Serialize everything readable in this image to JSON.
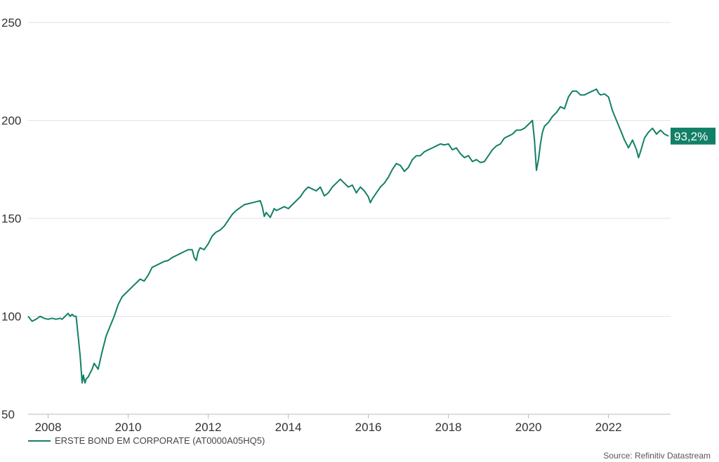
{
  "colors": {
    "series": "#128066",
    "grid": "#e2e2e2",
    "text": "#333333"
  },
  "chart_data": {
    "type": "line",
    "title": "",
    "xlabel": "",
    "ylabel": "",
    "xlim": [
      2007.5,
      2023.55
    ],
    "ylim": [
      50,
      250
    ],
    "y_ticks": [
      "50",
      "100",
      "150",
      "200",
      "250"
    ],
    "x_ticks": [
      "2008",
      "2010",
      "2012",
      "2014",
      "2016",
      "2018",
      "2020",
      "2022"
    ],
    "grid": "horizontal",
    "legend_position": "bottom-left",
    "end_label": "93,2%",
    "series": [
      {
        "name": "ERSTE BOND EM CORPORATE (AT0000A05HQ5)",
        "points": [
          [
            2007.5,
            100
          ],
          [
            2007.6,
            97.5
          ],
          [
            2007.7,
            98.5
          ],
          [
            2007.8,
            100
          ],
          [
            2007.9,
            99
          ],
          [
            2008.0,
            98.5
          ],
          [
            2008.1,
            99
          ],
          [
            2008.2,
            98.5
          ],
          [
            2008.3,
            99
          ],
          [
            2008.35,
            98.5
          ],
          [
            2008.45,
            100.5
          ],
          [
            2008.5,
            101.5
          ],
          [
            2008.55,
            100
          ],
          [
            2008.6,
            101
          ],
          [
            2008.65,
            100
          ],
          [
            2008.7,
            100
          ],
          [
            2008.75,
            90
          ],
          [
            2008.8,
            80
          ],
          [
            2008.85,
            66
          ],
          [
            2008.88,
            70
          ],
          [
            2008.92,
            66
          ],
          [
            2008.95,
            68
          ],
          [
            2009.0,
            69
          ],
          [
            2009.1,
            73
          ],
          [
            2009.15,
            76
          ],
          [
            2009.25,
            73
          ],
          [
            2009.35,
            82
          ],
          [
            2009.45,
            90
          ],
          [
            2009.55,
            95
          ],
          [
            2009.65,
            100
          ],
          [
            2009.75,
            106
          ],
          [
            2009.85,
            110
          ],
          [
            2009.95,
            112
          ],
          [
            2010.1,
            115
          ],
          [
            2010.2,
            117
          ],
          [
            2010.3,
            119
          ],
          [
            2010.4,
            118
          ],
          [
            2010.5,
            121
          ],
          [
            2010.6,
            125
          ],
          [
            2010.7,
            126
          ],
          [
            2010.8,
            127
          ],
          [
            2010.9,
            128
          ],
          [
            2011.0,
            128.5
          ],
          [
            2011.1,
            130
          ],
          [
            2011.2,
            131
          ],
          [
            2011.3,
            132
          ],
          [
            2011.4,
            133
          ],
          [
            2011.5,
            134
          ],
          [
            2011.6,
            134
          ],
          [
            2011.65,
            130
          ],
          [
            2011.7,
            128.5
          ],
          [
            2011.75,
            133
          ],
          [
            2011.8,
            135
          ],
          [
            2011.9,
            134
          ],
          [
            2012.0,
            137
          ],
          [
            2012.1,
            141
          ],
          [
            2012.2,
            143
          ],
          [
            2012.3,
            144
          ],
          [
            2012.4,
            146
          ],
          [
            2012.5,
            149
          ],
          [
            2012.6,
            152
          ],
          [
            2012.7,
            154
          ],
          [
            2012.8,
            155.5
          ],
          [
            2012.9,
            157
          ],
          [
            2013.0,
            157.5
          ],
          [
            2013.1,
            158
          ],
          [
            2013.2,
            158.5
          ],
          [
            2013.3,
            159
          ],
          [
            2013.35,
            156
          ],
          [
            2013.4,
            151
          ],
          [
            2013.45,
            153
          ],
          [
            2013.55,
            150.5
          ],
          [
            2013.65,
            155
          ],
          [
            2013.7,
            154
          ],
          [
            2013.8,
            155
          ],
          [
            2013.9,
            156
          ],
          [
            2014.0,
            155
          ],
          [
            2014.1,
            157
          ],
          [
            2014.2,
            159
          ],
          [
            2014.3,
            161
          ],
          [
            2014.4,
            164
          ],
          [
            2014.5,
            166
          ],
          [
            2014.6,
            165
          ],
          [
            2014.7,
            164
          ],
          [
            2014.8,
            166
          ],
          [
            2014.9,
            161.5
          ],
          [
            2015.0,
            163
          ],
          [
            2015.1,
            166
          ],
          [
            2015.2,
            168
          ],
          [
            2015.3,
            170
          ],
          [
            2015.4,
            168
          ],
          [
            2015.5,
            166
          ],
          [
            2015.6,
            167
          ],
          [
            2015.7,
            163
          ],
          [
            2015.8,
            166
          ],
          [
            2015.9,
            164
          ],
          [
            2016.0,
            161
          ],
          [
            2016.05,
            158
          ],
          [
            2016.1,
            160
          ],
          [
            2016.2,
            163
          ],
          [
            2016.3,
            166
          ],
          [
            2016.4,
            168
          ],
          [
            2016.5,
            171
          ],
          [
            2016.6,
            175
          ],
          [
            2016.7,
            178
          ],
          [
            2016.8,
            177
          ],
          [
            2016.9,
            174
          ],
          [
            2017.0,
            176
          ],
          [
            2017.1,
            180
          ],
          [
            2017.2,
            182
          ],
          [
            2017.3,
            182
          ],
          [
            2017.4,
            184
          ],
          [
            2017.5,
            185
          ],
          [
            2017.6,
            186
          ],
          [
            2017.7,
            187
          ],
          [
            2017.8,
            188
          ],
          [
            2017.9,
            187.5
          ],
          [
            2018.0,
            188
          ],
          [
            2018.1,
            185
          ],
          [
            2018.2,
            186
          ],
          [
            2018.3,
            183
          ],
          [
            2018.4,
            181
          ],
          [
            2018.5,
            182
          ],
          [
            2018.6,
            179
          ],
          [
            2018.7,
            180
          ],
          [
            2018.8,
            178.5
          ],
          [
            2018.9,
            179
          ],
          [
            2019.0,
            182
          ],
          [
            2019.1,
            185
          ],
          [
            2019.2,
            187
          ],
          [
            2019.3,
            188
          ],
          [
            2019.4,
            191
          ],
          [
            2019.5,
            192
          ],
          [
            2019.6,
            193
          ],
          [
            2019.7,
            195
          ],
          [
            2019.8,
            195
          ],
          [
            2019.9,
            196
          ],
          [
            2020.0,
            198
          ],
          [
            2020.1,
            200
          ],
          [
            2020.15,
            190
          ],
          [
            2020.2,
            174.5
          ],
          [
            2020.25,
            180
          ],
          [
            2020.3,
            188
          ],
          [
            2020.35,
            194
          ],
          [
            2020.4,
            197
          ],
          [
            2020.5,
            199
          ],
          [
            2020.6,
            202
          ],
          [
            2020.7,
            204
          ],
          [
            2020.8,
            207
          ],
          [
            2020.9,
            206
          ],
          [
            2021.0,
            212
          ],
          [
            2021.1,
            215
          ],
          [
            2021.2,
            215
          ],
          [
            2021.3,
            213
          ],
          [
            2021.4,
            213
          ],
          [
            2021.5,
            214
          ],
          [
            2021.6,
            215
          ],
          [
            2021.7,
            216
          ],
          [
            2021.75,
            214
          ],
          [
            2021.8,
            213
          ],
          [
            2021.9,
            213.5
          ],
          [
            2022.0,
            212
          ],
          [
            2022.1,
            205
          ],
          [
            2022.2,
            200
          ],
          [
            2022.3,
            195
          ],
          [
            2022.4,
            190
          ],
          [
            2022.5,
            186
          ],
          [
            2022.6,
            190
          ],
          [
            2022.7,
            185
          ],
          [
            2022.75,
            181
          ],
          [
            2022.8,
            184
          ],
          [
            2022.9,
            191
          ],
          [
            2023.0,
            194
          ],
          [
            2023.1,
            196
          ],
          [
            2023.2,
            193
          ],
          [
            2023.3,
            195
          ],
          [
            2023.4,
            193
          ],
          [
            2023.5,
            192
          ]
        ]
      }
    ]
  },
  "source": "Source: Refinitiv Datastream"
}
